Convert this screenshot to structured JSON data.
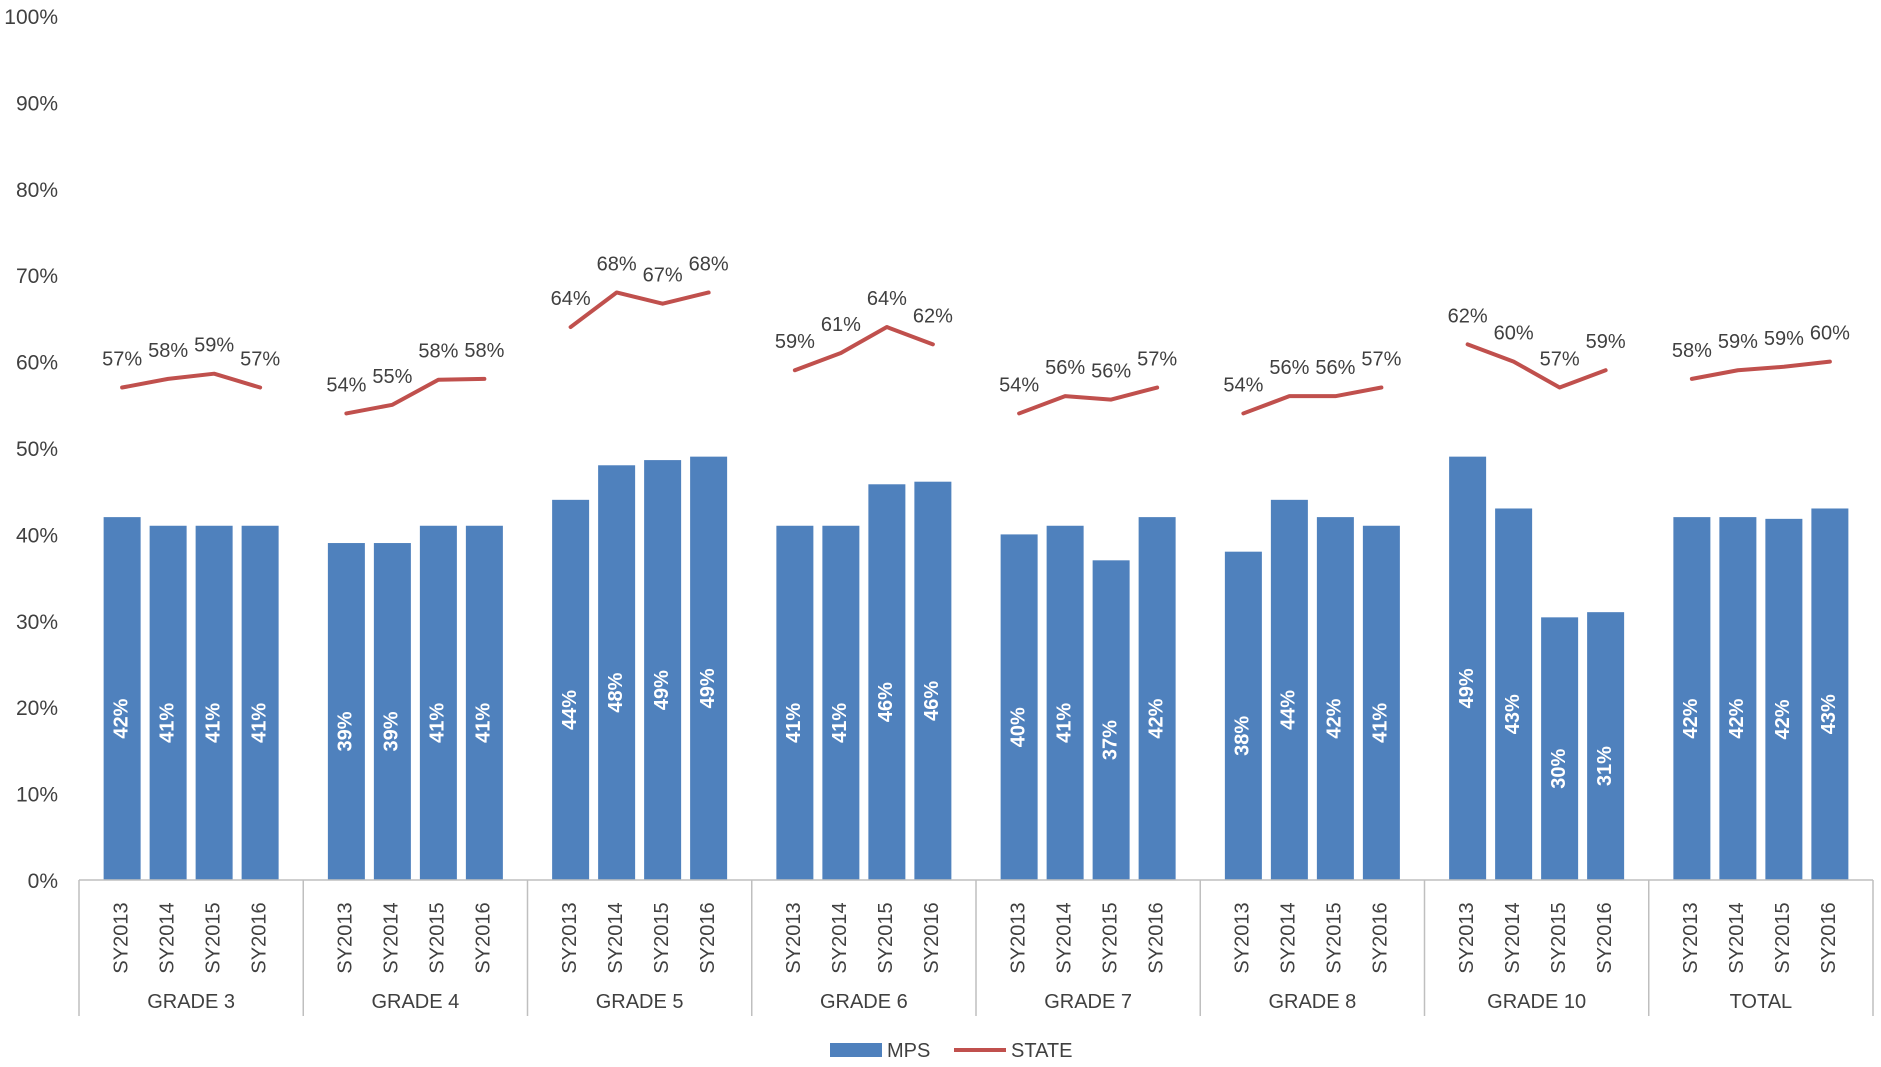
{
  "chart_data": {
    "type": "bar",
    "title": "",
    "xlabel": "",
    "ylabel": "",
    "ylim": [
      0,
      100
    ],
    "y_ticks": [
      "0%",
      "10%",
      "20%",
      "30%",
      "40%",
      "50%",
      "60%",
      "70%",
      "80%",
      "90%",
      "100%"
    ],
    "grid": false,
    "legend_position": "bottom",
    "groups": [
      {
        "label": "GRADE 3",
        "categories": [
          "SY2013",
          "SY2014",
          "SY2015",
          "SY2016"
        ]
      },
      {
        "label": "GRADE 4",
        "categories": [
          "SY2013",
          "SY2014",
          "SY2015",
          "SY2016"
        ]
      },
      {
        "label": "GRADE 5",
        "categories": [
          "SY2013",
          "SY2014",
          "SY2015",
          "SY2016"
        ]
      },
      {
        "label": "GRADE 6",
        "categories": [
          "SY2013",
          "SY2014",
          "SY2015",
          "SY2016"
        ]
      },
      {
        "label": "GRADE 7",
        "categories": [
          "SY2013",
          "SY2014",
          "SY2015",
          "SY2016"
        ]
      },
      {
        "label": "GRADE 8",
        "categories": [
          "SY2013",
          "SY2014",
          "SY2015",
          "SY2016"
        ]
      },
      {
        "label": "GRADE 10",
        "categories": [
          "SY2013",
          "SY2014",
          "SY2015",
          "SY2016"
        ]
      },
      {
        "label": "TOTAL",
        "categories": [
          "SY2013",
          "SY2014",
          "SY2015",
          "SY2016"
        ]
      }
    ],
    "series": [
      {
        "name": "MPS",
        "type": "bar",
        "color": "#4f81bd",
        "values": [
          [
            42,
            41,
            41,
            41
          ],
          [
            39,
            39,
            41,
            41
          ],
          [
            44,
            48,
            48.6,
            49
          ],
          [
            41,
            41,
            45.8,
            46.1
          ],
          [
            40,
            41,
            37,
            42
          ],
          [
            38,
            44,
            42,
            41
          ],
          [
            49,
            43,
            30.4,
            31
          ],
          [
            42,
            42,
            41.8,
            43
          ]
        ],
        "labels": [
          [
            "42%",
            "41%",
            "41%",
            "41%"
          ],
          [
            "39%",
            "39%",
            "41%",
            "41%"
          ],
          [
            "44%",
            "48%",
            "49%",
            "49%"
          ],
          [
            "41%",
            "41%",
            "46%",
            "46%"
          ],
          [
            "40%",
            "41%",
            "37%",
            "42%"
          ],
          [
            "38%",
            "44%",
            "42%",
            "41%"
          ],
          [
            "49%",
            "43%",
            "30%",
            "31%"
          ],
          [
            "42%",
            "42%",
            "42%",
            "43%"
          ]
        ]
      },
      {
        "name": "STATE",
        "type": "line",
        "color": "#c0504d",
        "values": [
          [
            57,
            58,
            58.6,
            57
          ],
          [
            54,
            55,
            57.9,
            58
          ],
          [
            64,
            68,
            66.7,
            68
          ],
          [
            59,
            61,
            64,
            62
          ],
          [
            54,
            56,
            55.6,
            57
          ],
          [
            54,
            56,
            56,
            57
          ],
          [
            62,
            60,
            57,
            59
          ],
          [
            58,
            59,
            59.4,
            60
          ]
        ],
        "labels": [
          [
            "57%",
            "58%",
            "59%",
            "57%"
          ],
          [
            "54%",
            "55%",
            "58%",
            "58%"
          ],
          [
            "64%",
            "68%",
            "67%",
            "68%"
          ],
          [
            "59%",
            "61%",
            "64%",
            "62%"
          ],
          [
            "54%",
            "56%",
            "56%",
            "57%"
          ],
          [
            "54%",
            "56%",
            "56%",
            "57%"
          ],
          [
            "62%",
            "60%",
            "57%",
            "59%"
          ],
          [
            "58%",
            "59%",
            "59%",
            "60%"
          ]
        ]
      }
    ]
  }
}
